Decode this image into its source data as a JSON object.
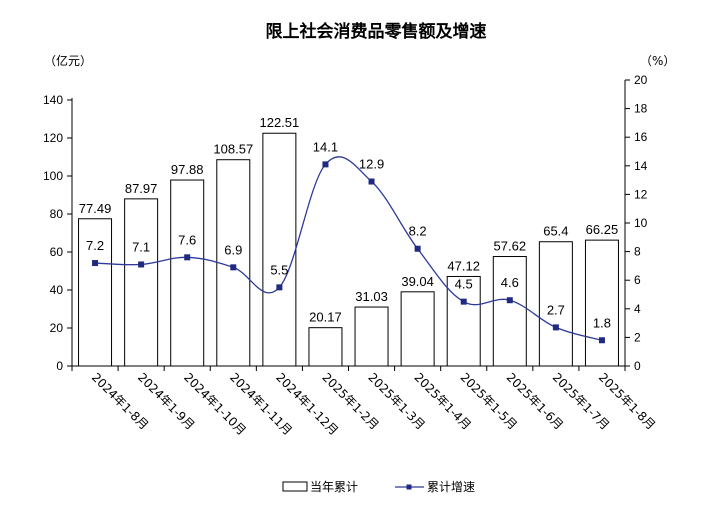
{
  "chart_data": {
    "type": "bar",
    "title": "限上社会消费品零售额及增速",
    "left_unit": "（亿元）",
    "right_unit": "（%）",
    "categories": [
      "2024年1-8月",
      "2024年1-9月",
      "2024年1-10月",
      "2024年1-11月",
      "2024年1-12月",
      "2025年1-2月",
      "2025年1-3月",
      "2025年1-4月",
      "2025年1-5月",
      "2025年1-6月",
      "2025年1-7月",
      "2025年1-8月"
    ],
    "series": [
      {
        "name": "当年累计",
        "type": "bar",
        "axis": "left",
        "values": [
          77.49,
          87.97,
          97.88,
          108.57,
          122.51,
          20.17,
          31.03,
          39.04,
          47.12,
          57.62,
          65.4,
          66.25
        ],
        "labels": [
          "77.49",
          "87.97",
          "97.88",
          "108.57",
          "122.51",
          "20.17",
          "31.03",
          "39.04",
          "47.12",
          "57.62",
          "65.4",
          "66.25"
        ]
      },
      {
        "name": "累计增速",
        "type": "line",
        "axis": "right",
        "values": [
          7.2,
          7.1,
          7.6,
          6.9,
          5.5,
          14.1,
          12.9,
          8.2,
          4.5,
          4.6,
          2.7,
          1.8
        ],
        "labels": [
          "7.2",
          "7.1",
          "7.6",
          "6.9",
          "5.5",
          "14.1",
          "12.9",
          "8.2",
          "4.5",
          "4.6",
          "2.7",
          "1.8"
        ]
      }
    ],
    "left_axis": {
      "ylim": [
        0,
        140
      ],
      "ticks": [
        "0",
        "20",
        "40",
        "60",
        "80",
        "100",
        "120",
        "140"
      ]
    },
    "right_axis": {
      "ylim": [
        0,
        20
      ],
      "ticks": [
        "0",
        "2",
        "4",
        "6",
        "8",
        "10",
        "12",
        "14",
        "16",
        "18",
        "20"
      ]
    },
    "grid": false,
    "legend_position": "bottom",
    "colors": {
      "bar_fill": "#ffffff",
      "bar_stroke": "#000000",
      "line": "#2e3b9a",
      "marker": "#1f2a80"
    }
  }
}
